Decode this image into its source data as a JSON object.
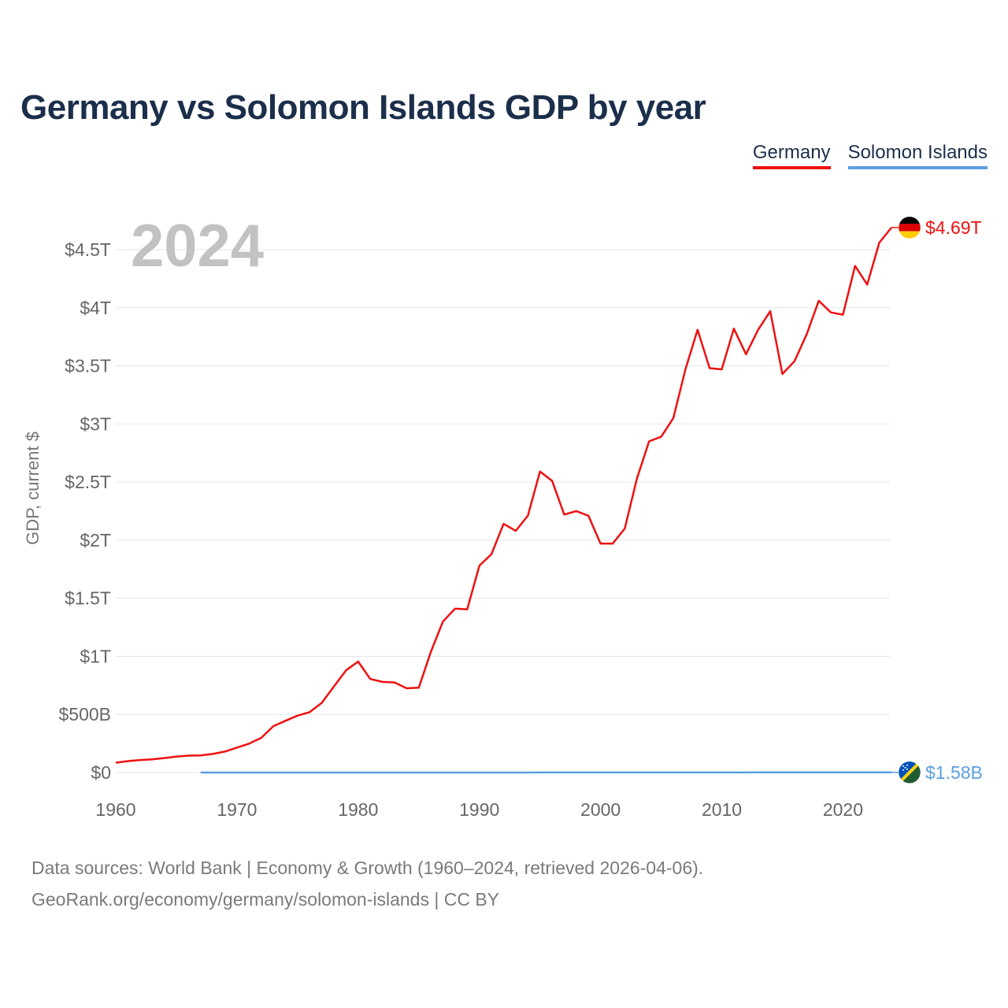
{
  "title": "Germany vs Solomon Islands GDP by year",
  "legend": {
    "germany": "Germany",
    "solomon": "Solomon Islands"
  },
  "footer": {
    "line1": "Data sources: World Bank | Economy & Growth (1960–2024, retrieved 2026-04-06).",
    "line2": "GeoRank.org/economy/germany/solomon-islands | CC BY"
  },
  "colors": {
    "germany": "#ee1111",
    "solomon": "#5b9fe0",
    "title": "#1b2f4b",
    "grid": "#e6e6e6"
  },
  "chart_data": {
    "type": "line",
    "title": "Germany vs Solomon Islands GDP by year",
    "year_watermark": "2024",
    "xlabel": "",
    "ylabel": "GDP, current $",
    "xlim": [
      1960,
      2024
    ],
    "ylim": [
      0,
      4800
    ],
    "y_units": "billions USD",
    "x_ticks": [
      1960,
      1970,
      1980,
      1990,
      2000,
      2010,
      2020
    ],
    "y_ticks": [
      {
        "value": 0,
        "label": "$0"
      },
      {
        "value": 500,
        "label": "$500B"
      },
      {
        "value": 1000,
        "label": "$1T"
      },
      {
        "value": 1500,
        "label": "$1.5T"
      },
      {
        "value": 2000,
        "label": "$2T"
      },
      {
        "value": 2500,
        "label": "$2.5T"
      },
      {
        "value": 3000,
        "label": "$3T"
      },
      {
        "value": 3500,
        "label": "$3.5T"
      },
      {
        "value": 4000,
        "label": "$4T"
      },
      {
        "value": 4500,
        "label": "$4.5T"
      }
    ],
    "grid": true,
    "legend": "top-right",
    "series": [
      {
        "name": "Germany",
        "color": "#ee1111",
        "end_label": "$4.69T",
        "x": [
          1960,
          1961,
          1962,
          1963,
          1964,
          1965,
          1966,
          1967,
          1968,
          1969,
          1970,
          1971,
          1972,
          1973,
          1974,
          1975,
          1976,
          1977,
          1978,
          1979,
          1980,
          1981,
          1982,
          1983,
          1984,
          1985,
          1986,
          1987,
          1988,
          1989,
          1990,
          1991,
          1992,
          1993,
          1994,
          1995,
          1996,
          1997,
          1998,
          1999,
          2000,
          2001,
          2002,
          2003,
          2004,
          2005,
          2006,
          2007,
          2008,
          2009,
          2010,
          2011,
          2012,
          2013,
          2014,
          2015,
          2016,
          2017,
          2018,
          2019,
          2020,
          2021,
          2022,
          2023,
          2024
        ],
        "values": [
          85,
          98,
          108,
          114,
          125,
          137,
          146,
          148,
          160,
          180,
          215,
          249,
          298,
          399,
          445,
          490,
          520,
          600,
          740,
          880,
          955,
          805,
          780,
          775,
          725,
          730,
          1040,
          1300,
          1410,
          1405,
          1780,
          1880,
          2140,
          2080,
          2210,
          2590,
          2510,
          2220,
          2250,
          2210,
          1970,
          1970,
          2100,
          2530,
          2850,
          2890,
          3050,
          3470,
          3810,
          3480,
          3470,
          3820,
          3600,
          3810,
          3970,
          3430,
          3540,
          3770,
          4060,
          3960,
          3940,
          4360,
          4200,
          4560,
          4690
        ]
      },
      {
        "name": "Solomon Islands",
        "color": "#5b9fe0",
        "end_label": "$1.58B",
        "x": [
          1967,
          1968,
          1969,
          1971,
          1972,
          1973,
          1974,
          1975,
          1976,
          1977,
          1978,
          1979,
          1980,
          1981,
          1982,
          1983,
          1984,
          1985,
          1986,
          1987,
          1988,
          1989,
          1990,
          1991,
          1992,
          1993,
          1994,
          1995,
          1996,
          1997,
          1998,
          1999,
          2000,
          2001,
          2002,
          2003,
          2004,
          2005,
          2006,
          2007,
          2008,
          2009,
          2010,
          2011,
          2012,
          2013,
          2014,
          2015,
          2016,
          2017,
          2018,
          2019,
          2020,
          2021,
          2022,
          2023,
          2024
        ],
        "values": [
          0.03,
          0.03,
          0.03,
          0.04,
          0.04,
          0.05,
          0.07,
          0.07,
          0.08,
          0.1,
          0.12,
          0.15,
          0.16,
          0.18,
          0.17,
          0.18,
          0.2,
          0.19,
          0.14,
          0.15,
          0.2,
          0.2,
          0.21,
          0.22,
          0.25,
          0.27,
          0.33,
          0.36,
          0.41,
          0.42,
          0.38,
          0.39,
          0.43,
          0.41,
          0.34,
          0.34,
          0.38,
          0.43,
          0.49,
          0.55,
          0.61,
          0.6,
          0.68,
          0.88,
          1.01,
          1.15,
          1.22,
          1.18,
          1.23,
          1.31,
          1.43,
          1.57,
          1.55,
          1.63,
          1.6,
          1.63,
          1.58
        ]
      }
    ]
  }
}
